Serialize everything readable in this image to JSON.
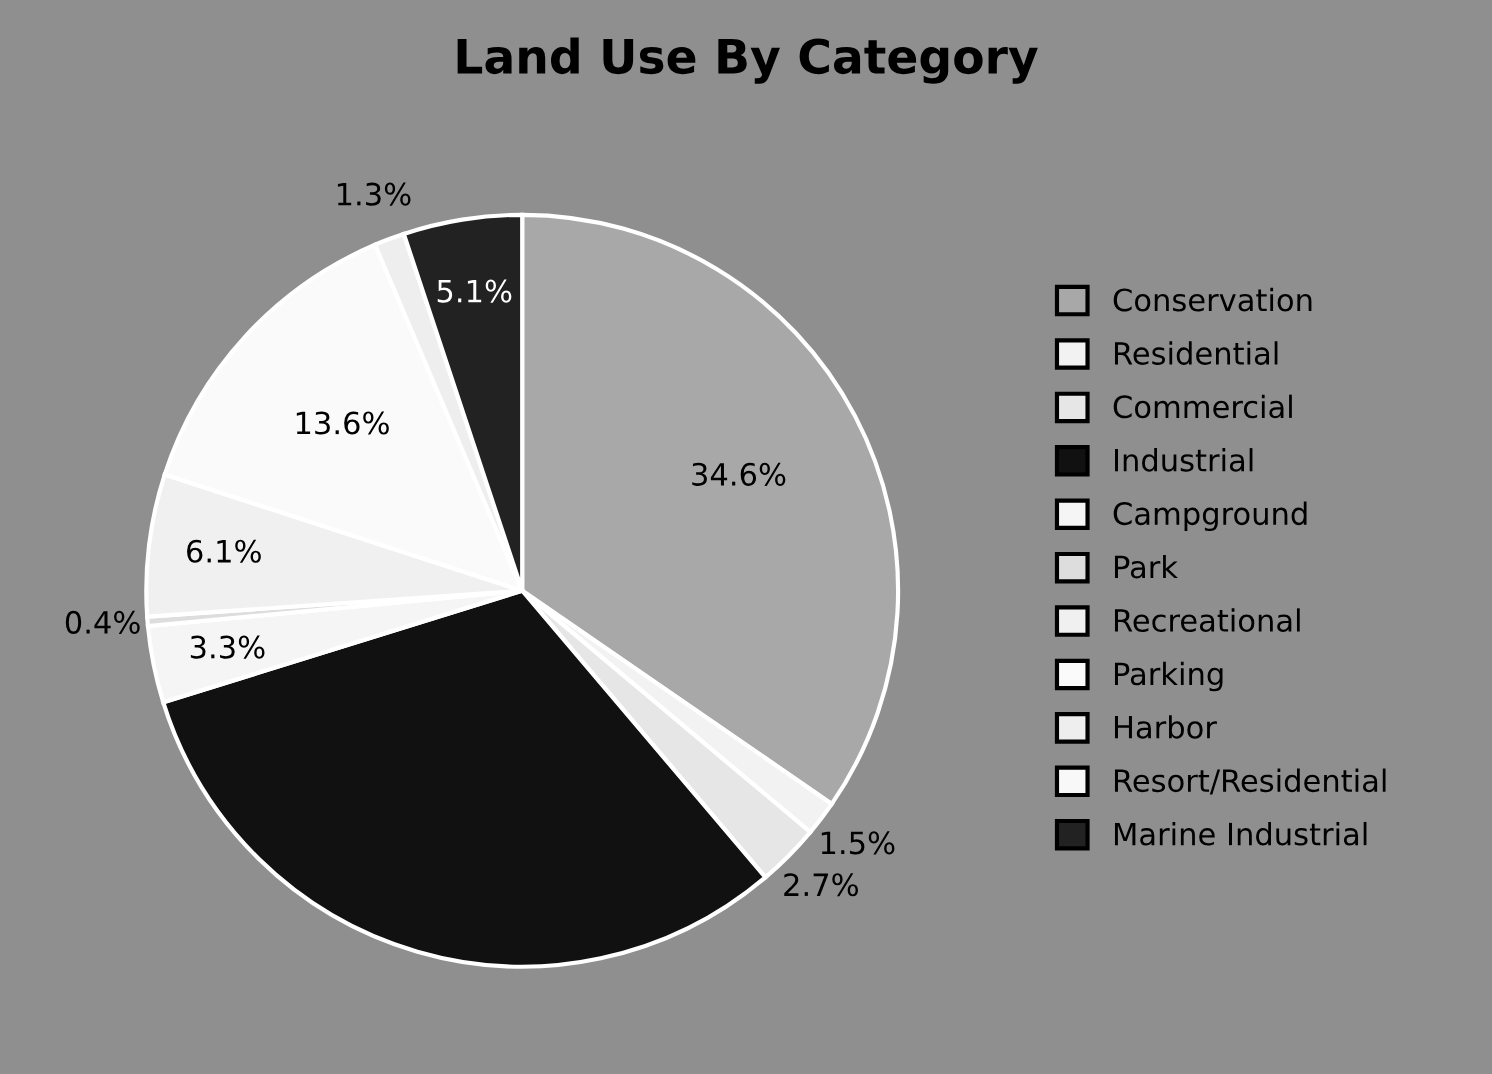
{
  "chart_data": {
    "type": "pie",
    "title": "Land Use By Category",
    "categories": [
      "Conservation",
      "Residential",
      "Commercial",
      "Industrial",
      "Campground",
      "Park",
      "Recreational",
      "Parking",
      "Harbor",
      "Resort/Residential",
      "Marine Industrial"
    ],
    "values": [
      34.6,
      1.5,
      2.7,
      31.4,
      3.3,
      0.4,
      6.1,
      13.6,
      1.3,
      0,
      5.1
    ],
    "value_labels": [
      "34.6%",
      "1.5%",
      "2.7%",
      null,
      "3.3%",
      "0.4%",
      "6.1%",
      "13.6%",
      "1.3%",
      null,
      "5.1%"
    ],
    "colors": [
      "#a8a8a8",
      "#f2f2f2",
      "#e6e6e6",
      "#111111",
      "#f5f5f5",
      "#dddddd",
      "#f0f0f0",
      "#fafafa",
      "#eeeeee",
      "#f8f8f8",
      "#222222"
    ],
    "legend": "right"
  }
}
